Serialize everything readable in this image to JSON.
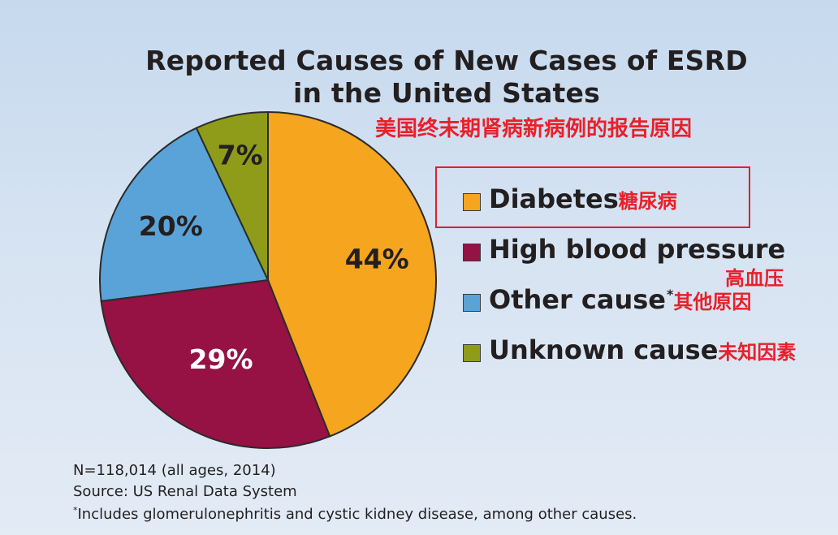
{
  "title_line1": "Reported Causes of New Cases of ESRD",
  "title_line2": "in the United States",
  "subtitle_cn": "美国终末期肾病新病例的报告原因",
  "chart_data": {
    "type": "pie",
    "title": "Reported Causes of New Cases of ESRD in the United States",
    "slices": [
      {
        "label": "Diabetes",
        "label_cn": "糖尿病",
        "value": 44,
        "display": "44%",
        "color": "#f5a51e",
        "label_color": "#231f20"
      },
      {
        "label": "High blood pressure",
        "label_cn": "高血压",
        "value": 29,
        "display": "29%",
        "color": "#961144",
        "label_color": "#ffffff"
      },
      {
        "label": "Other cause",
        "label_cn": "其他原因",
        "value": 20,
        "display": "20%",
        "color": "#5aa3d8",
        "label_color": "#231f20"
      },
      {
        "label": "Unknown cause",
        "label_cn": "未知因素",
        "value": 7,
        "display": "7%",
        "color": "#8e9c1a",
        "label_color": "#231f20"
      }
    ],
    "legend_position": "right"
  },
  "legend": {
    "diabetes": "Diabetes",
    "diabetes_cn": "糖尿病",
    "hbp": "High blood pressure",
    "hbp_cn": "高血压",
    "other": "Other cause",
    "other_sup": "*",
    "other_cn": "其他原因",
    "unknown": "Unknown cause",
    "unknown_cn": "未知因素"
  },
  "footnotes": {
    "n": "N=118,014 (all ages, 2014)",
    "source": "Source: US Renal Data System",
    "asterisk": "*",
    "includes": "Includes glomerulonephritis and cystic kidney disease, among other causes."
  },
  "colors": {
    "diabetes": "#f5a51e",
    "hbp": "#961144",
    "other": "#5aa3d8",
    "unknown": "#8e9c1a",
    "highlight": "#e0202a"
  }
}
